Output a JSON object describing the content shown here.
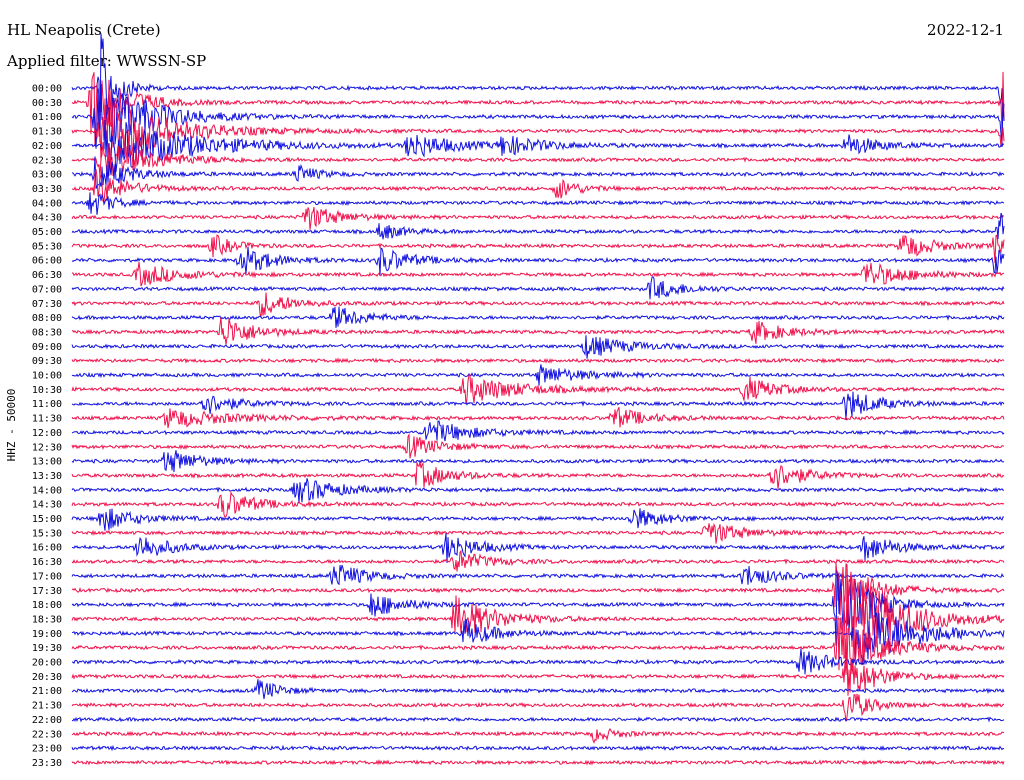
{
  "header": {
    "station": "HL Neapolis (Crete)",
    "filter": "Applied filter: WWSSN-SP",
    "date": "2022-12-1"
  },
  "chart_data": {
    "type": "line",
    "title": "HL Neapolis (Crete)",
    "subtitle": "Applied filter: WWSSN-SP",
    "ylabel": "HHZ - 50000",
    "xlabel": "",
    "grid": false,
    "legend": "none",
    "row_interval_minutes": 30,
    "row_labels": [
      "00:00",
      "00:30",
      "01:00",
      "01:30",
      "02:00",
      "02:30",
      "03:00",
      "03:30",
      "04:00",
      "04:30",
      "05:00",
      "05:30",
      "06:00",
      "06:30",
      "07:00",
      "07:30",
      "08:00",
      "08:30",
      "09:00",
      "09:30",
      "10:00",
      "10:30",
      "11:00",
      "11:30",
      "12:00",
      "12:30",
      "13:00",
      "13:30",
      "14:00",
      "14:30",
      "15:00",
      "15:30",
      "16:00",
      "16:30",
      "17:00",
      "17:30",
      "18:00",
      "18:30",
      "19:00",
      "19:30",
      "20:00",
      "20:30",
      "21:00",
      "21:30",
      "22:00",
      "22:30",
      "23:00",
      "23:30"
    ],
    "row_colors": [
      "#1010e0",
      "#f0104a"
    ],
    "events": [
      {
        "row": 0,
        "t": 0.03,
        "amp": 60,
        "dur": 0.015
      },
      {
        "row": 1,
        "t": 0.02,
        "amp": 50,
        "dur": 0.03
      },
      {
        "row": 2,
        "t": 0.025,
        "amp": 45,
        "dur": 0.05
      },
      {
        "row": 3,
        "t": 0.03,
        "amp": 40,
        "dur": 0.06
      },
      {
        "row": 4,
        "t": 0.035,
        "amp": 30,
        "dur": 0.08
      },
      {
        "row": 5,
        "t": 0.03,
        "amp": 22,
        "dur": 0.05
      },
      {
        "row": 6,
        "t": 0.025,
        "amp": 20,
        "dur": 0.03
      },
      {
        "row": 7,
        "t": 0.025,
        "amp": 18,
        "dur": 0.03
      },
      {
        "row": 8,
        "t": 0.02,
        "amp": 15,
        "dur": 0.02
      },
      {
        "row": 4,
        "t": 0.36,
        "amp": 14,
        "dur": 0.04
      },
      {
        "row": 4,
        "t": 0.46,
        "amp": 10,
        "dur": 0.04
      },
      {
        "row": 4,
        "t": 0.83,
        "amp": 12,
        "dur": 0.03
      },
      {
        "row": 6,
        "t": 0.24,
        "amp": 10,
        "dur": 0.02
      },
      {
        "row": 7,
        "t": 0.52,
        "amp": 12,
        "dur": 0.02
      },
      {
        "row": 9,
        "t": 0.25,
        "amp": 14,
        "dur": 0.03
      },
      {
        "row": 10,
        "t": 0.33,
        "amp": 10,
        "dur": 0.02
      },
      {
        "row": 11,
        "t": 0.15,
        "amp": 12,
        "dur": 0.02
      },
      {
        "row": 11,
        "t": 0.89,
        "amp": 14,
        "dur": 0.03
      },
      {
        "row": 12,
        "t": 0.18,
        "amp": 16,
        "dur": 0.03
      },
      {
        "row": 12,
        "t": 0.33,
        "amp": 14,
        "dur": 0.03
      },
      {
        "row": 13,
        "t": 0.07,
        "amp": 12,
        "dur": 0.04
      },
      {
        "row": 13,
        "t": 0.85,
        "amp": 14,
        "dur": 0.04
      },
      {
        "row": 14,
        "t": 0.62,
        "amp": 12,
        "dur": 0.03
      },
      {
        "row": 15,
        "t": 0.2,
        "amp": 14,
        "dur": 0.03
      },
      {
        "row": 16,
        "t": 0.28,
        "amp": 12,
        "dur": 0.03
      },
      {
        "row": 17,
        "t": 0.16,
        "amp": 18,
        "dur": 0.03
      },
      {
        "row": 17,
        "t": 0.73,
        "amp": 12,
        "dur": 0.03
      },
      {
        "row": 18,
        "t": 0.55,
        "amp": 12,
        "dur": 0.04
      },
      {
        "row": 20,
        "t": 0.5,
        "amp": 10,
        "dur": 0.04
      },
      {
        "row": 21,
        "t": 0.42,
        "amp": 16,
        "dur": 0.05
      },
      {
        "row": 21,
        "t": 0.72,
        "amp": 14,
        "dur": 0.03
      },
      {
        "row": 22,
        "t": 0.14,
        "amp": 12,
        "dur": 0.03
      },
      {
        "row": 22,
        "t": 0.83,
        "amp": 16,
        "dur": 0.03
      },
      {
        "row": 23,
        "t": 0.1,
        "amp": 10,
        "dur": 0.06
      },
      {
        "row": 23,
        "t": 0.58,
        "amp": 12,
        "dur": 0.03
      },
      {
        "row": 24,
        "t": 0.38,
        "amp": 14,
        "dur": 0.04
      },
      {
        "row": 25,
        "t": 0.36,
        "amp": 12,
        "dur": 0.03
      },
      {
        "row": 26,
        "t": 0.1,
        "amp": 14,
        "dur": 0.03
      },
      {
        "row": 27,
        "t": 0.37,
        "amp": 14,
        "dur": 0.03
      },
      {
        "row": 27,
        "t": 0.75,
        "amp": 16,
        "dur": 0.03
      },
      {
        "row": 28,
        "t": 0.24,
        "amp": 14,
        "dur": 0.04
      },
      {
        "row": 29,
        "t": 0.16,
        "amp": 16,
        "dur": 0.03
      },
      {
        "row": 30,
        "t": 0.03,
        "amp": 14,
        "dur": 0.03
      },
      {
        "row": 30,
        "t": 0.6,
        "amp": 12,
        "dur": 0.03
      },
      {
        "row": 31,
        "t": 0.68,
        "amp": 14,
        "dur": 0.03
      },
      {
        "row": 32,
        "t": 0.07,
        "amp": 14,
        "dur": 0.03
      },
      {
        "row": 32,
        "t": 0.4,
        "amp": 16,
        "dur": 0.03
      },
      {
        "row": 32,
        "t": 0.85,
        "amp": 14,
        "dur": 0.03
      },
      {
        "row": 33,
        "t": 0.41,
        "amp": 12,
        "dur": 0.03
      },
      {
        "row": 34,
        "t": 0.28,
        "amp": 14,
        "dur": 0.03
      },
      {
        "row": 34,
        "t": 0.72,
        "amp": 12,
        "dur": 0.03
      },
      {
        "row": 35,
        "t": 0.82,
        "amp": 40,
        "dur": 0.03
      },
      {
        "row": 36,
        "t": 0.32,
        "amp": 14,
        "dur": 0.03
      },
      {
        "row": 36,
        "t": 0.82,
        "amp": 50,
        "dur": 0.03
      },
      {
        "row": 37,
        "t": 0.41,
        "amp": 24,
        "dur": 0.04
      },
      {
        "row": 37,
        "t": 0.83,
        "amp": 55,
        "dur": 0.05
      },
      {
        "row": 38,
        "t": 0.42,
        "amp": 14,
        "dur": 0.03
      },
      {
        "row": 38,
        "t": 0.84,
        "amp": 40,
        "dur": 0.05
      },
      {
        "row": 39,
        "t": 0.82,
        "amp": 35,
        "dur": 0.04
      },
      {
        "row": 40,
        "t": 0.78,
        "amp": 14,
        "dur": 0.03
      },
      {
        "row": 41,
        "t": 0.83,
        "amp": 25,
        "dur": 0.03
      },
      {
        "row": 42,
        "t": 0.2,
        "amp": 12,
        "dur": 0.02
      },
      {
        "row": 43,
        "t": 0.83,
        "amp": 20,
        "dur": 0.02
      },
      {
        "row": 45,
        "t": 0.56,
        "amp": 8,
        "dur": 0.02
      },
      {
        "row": 0,
        "t": 0.998,
        "amp": 45,
        "dur": 0.004
      },
      {
        "row": 1,
        "t": 0.998,
        "amp": 40,
        "dur": 0.004
      },
      {
        "row": 2,
        "t": 0.998,
        "amp": 35,
        "dur": 0.004
      },
      {
        "row": 3,
        "t": 0.998,
        "amp": 30,
        "dur": 0.004
      },
      {
        "row": 10,
        "t": 0.995,
        "amp": 22,
        "dur": 0.008
      },
      {
        "row": 11,
        "t": 0.99,
        "amp": 18,
        "dur": 0.01
      },
      {
        "row": 12,
        "t": 0.99,
        "amp": 16,
        "dur": 0.01
      }
    ]
  }
}
